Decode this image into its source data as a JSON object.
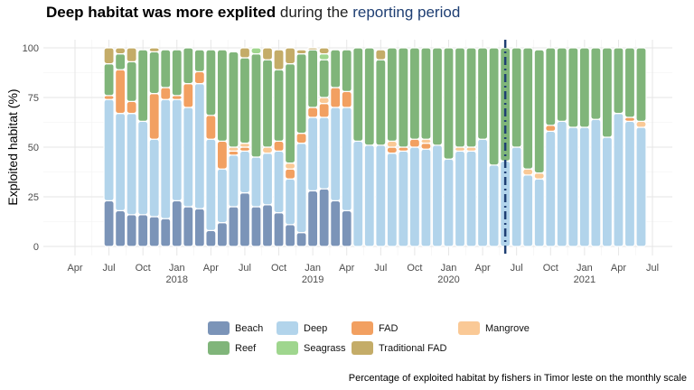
{
  "title": {
    "bold": "Deep habitat was more explited",
    "middle": " during the ",
    "highlight": "reporting period",
    "highlight_color": "#1f3f73"
  },
  "caption": "Percentage of exploited habitat by fishers in Timor leste on the monthly scale",
  "chart_data": {
    "type": "bar",
    "stacked": true,
    "ylabel": "Exploited habitat (%)",
    "ylim": [
      0,
      100
    ],
    "yticks": [
      0,
      25,
      50,
      75,
      100
    ],
    "x_ticks": [
      {
        "label": "Apr",
        "year": "",
        "date": "2017-04"
      },
      {
        "label": "Jul",
        "year": "",
        "date": "2017-07"
      },
      {
        "label": "Oct",
        "year": "",
        "date": "2017-10"
      },
      {
        "label": "Jan",
        "year": "2018",
        "date": "2018-01"
      },
      {
        "label": "Apr",
        "year": "",
        "date": "2018-04"
      },
      {
        "label": "Jul",
        "year": "",
        "date": "2018-07"
      },
      {
        "label": "Oct",
        "year": "",
        "date": "2018-10"
      },
      {
        "label": "Jan",
        "year": "2019",
        "date": "2019-01"
      },
      {
        "label": "Apr",
        "year": "",
        "date": "2019-04"
      },
      {
        "label": "Jul",
        "year": "",
        "date": "2019-07"
      },
      {
        "label": "Oct",
        "year": "",
        "date": "2019-10"
      },
      {
        "label": "Jan",
        "year": "2020",
        "date": "2020-01"
      },
      {
        "label": "Apr",
        "year": "",
        "date": "2020-04"
      },
      {
        "label": "Jul",
        "year": "",
        "date": "2020-07"
      },
      {
        "label": "Oct",
        "year": "",
        "date": "2020-10"
      },
      {
        "label": "Jan",
        "year": "2021",
        "date": "2021-01"
      },
      {
        "label": "Apr",
        "year": "",
        "date": "2021-04"
      },
      {
        "label": "Jul",
        "year": "",
        "date": "2021-07"
      }
    ],
    "reference_line": {
      "date": "2020-06",
      "color": "#1f3f73",
      "style": "dashed"
    },
    "legend_position": "bottom",
    "series": [
      {
        "name": "Beach",
        "color": "#7b94b8"
      },
      {
        "name": "Deep",
        "color": "#b2d4eb"
      },
      {
        "name": "FAD",
        "color": "#f2a061"
      },
      {
        "name": "Mangrove",
        "color": "#fac996"
      },
      {
        "name": "Reef",
        "color": "#80b57a"
      },
      {
        "name": "Seagrass",
        "color": "#9fd68e"
      },
      {
        "name": "Traditional FAD",
        "color": "#c4ac68"
      }
    ],
    "months": [
      "2017-07",
      "2017-08",
      "2017-09",
      "2017-10",
      "2017-11",
      "2017-12",
      "2018-01",
      "2018-02",
      "2018-03",
      "2018-04",
      "2018-05",
      "2018-06",
      "2018-07",
      "2018-08",
      "2018-09",
      "2018-10",
      "2018-11",
      "2018-12",
      "2019-01",
      "2019-02",
      "2019-03",
      "2019-04",
      "2019-05",
      "2019-06",
      "2019-07",
      "2019-08",
      "2019-09",
      "2019-10",
      "2019-11",
      "2019-12",
      "2020-01",
      "2020-02",
      "2020-03",
      "2020-04",
      "2020-05",
      "2020-06",
      "2020-07",
      "2020-08",
      "2020-09",
      "2020-10",
      "2020-11",
      "2020-12",
      "2021-01",
      "2021-02",
      "2021-03",
      "2021-04",
      "2021-05",
      "2021-06"
    ],
    "values": {
      "Beach": [
        23,
        18,
        16,
        16,
        15,
        14,
        23,
        20,
        19,
        8,
        12,
        20,
        27,
        20,
        21,
        17,
        11,
        7,
        28,
        29,
        23,
        18,
        0,
        0,
        0,
        0,
        0,
        0,
        0,
        0,
        0,
        0,
        0,
        0,
        0,
        0,
        0,
        0,
        0,
        0,
        0,
        0,
        0,
        0,
        0,
        0,
        0,
        0
      ],
      "Deep": [
        51,
        49,
        51,
        47,
        39,
        60,
        51,
        50,
        63,
        46,
        27,
        26,
        21,
        25,
        26,
        31,
        23,
        45,
        37,
        36,
        47,
        52,
        53,
        51,
        51,
        47,
        48,
        50,
        49,
        51,
        44,
        48,
        48,
        54,
        41,
        43,
        50,
        36,
        34,
        58,
        63,
        60,
        60,
        64,
        55,
        67,
        63,
        60
      ],
      "FAD": [
        2,
        22,
        6,
        0,
        23,
        6,
        2,
        12,
        6,
        12,
        14,
        2,
        2,
        0,
        0,
        5,
        5,
        5,
        5,
        7,
        10,
        8,
        0,
        0,
        0,
        3,
        2,
        4,
        3,
        0,
        0,
        0,
        0,
        0,
        0,
        0,
        0,
        0,
        0,
        3,
        0,
        0,
        0,
        0,
        0,
        0,
        2,
        0
      ],
      "Mangrove": [
        0,
        0,
        0,
        0,
        0,
        0,
        0,
        0,
        0,
        0,
        0,
        2,
        2,
        0,
        3,
        0,
        3,
        0,
        0,
        3,
        0,
        0,
        0,
        0,
        0,
        3,
        0,
        0,
        2,
        0,
        0,
        2,
        2,
        0,
        0,
        0,
        0,
        3,
        3,
        0,
        0,
        0,
        0,
        0,
        0,
        0,
        0,
        3
      ],
      "Reef": [
        16,
        8,
        20,
        36,
        21,
        19,
        23,
        18,
        11,
        33,
        46,
        48,
        43,
        52,
        44,
        36,
        50,
        40,
        29,
        19,
        19,
        21,
        47,
        49,
        43,
        47,
        50,
        46,
        46,
        49,
        56,
        50,
        50,
        46,
        59,
        57,
        50,
        61,
        62,
        39,
        37,
        40,
        40,
        36,
        45,
        33,
        35,
        37
      ],
      "Seagrass": [
        0,
        0,
        0,
        0,
        0,
        0,
        0,
        0,
        0,
        0,
        0,
        0,
        0,
        3,
        0,
        0,
        0,
        0,
        0,
        3,
        0,
        0,
        0,
        0,
        0,
        0,
        0,
        0,
        0,
        0,
        0,
        0,
        0,
        0,
        0,
        0,
        0,
        0,
        0,
        0,
        0,
        0,
        0,
        0,
        0,
        0,
        0,
        0
      ],
      "Traditional FAD": [
        8,
        3,
        7,
        0,
        2,
        0,
        0,
        0,
        0,
        0,
        0,
        0,
        5,
        0,
        6,
        10,
        8,
        2,
        1,
        3,
        0,
        0,
        0,
        0,
        5,
        0,
        0,
        0,
        0,
        0,
        0,
        0,
        0,
        0,
        0,
        0,
        0,
        0,
        0,
        0,
        0,
        0,
        0,
        0,
        0,
        0,
        0,
        0
      ]
    }
  }
}
